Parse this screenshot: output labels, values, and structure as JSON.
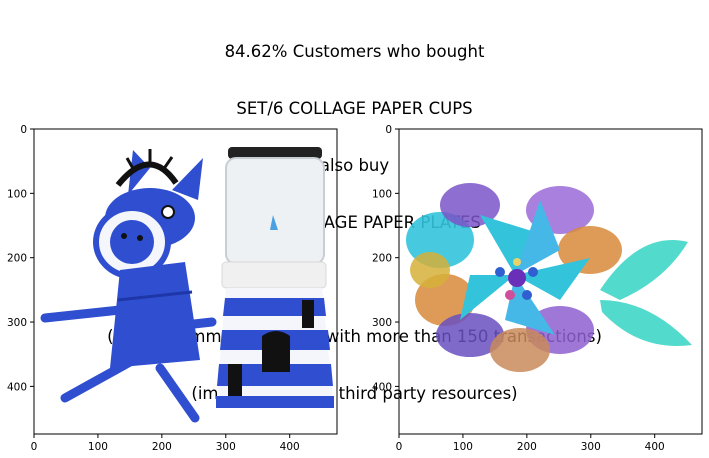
{
  "title_lines": [
    "84.62% Customers who bought",
    "SET/6 COLLAGE PAPER CUPS",
    "also buy",
    "SET/6 COLLAGE PAPER PLATES",
    "",
    "(only recommending item with more than 150 transactions)",
    "(images are from third party resources)"
  ],
  "chart_data": [
    {
      "type": "image",
      "content": "set-6-collage-paper-cups-craft-photo",
      "xlim": [
        0,
        474
      ],
      "ylim": [
        474,
        0
      ],
      "x_ticks": [
        "0",
        "100",
        "200",
        "300",
        "400"
      ],
      "y_ticks": [
        "0",
        "100",
        "200",
        "300",
        "400"
      ]
    },
    {
      "type": "image",
      "content": "set-6-collage-paper-plates-craft-photo",
      "xlim": [
        0,
        474
      ],
      "ylim": [
        474,
        0
      ],
      "x_ticks": [
        "0",
        "100",
        "200",
        "300",
        "400"
      ],
      "y_ticks": [
        "0",
        "100",
        "200",
        "300",
        "400"
      ]
    }
  ],
  "colors": {
    "blue": "#2f4fd0",
    "dark_blue": "#1e36a8",
    "white": "#f4f6fb",
    "black": "#111111",
    "teal": "#33c4dc",
    "purple": "#7a55c8",
    "orange": "#d88a3a"
  }
}
